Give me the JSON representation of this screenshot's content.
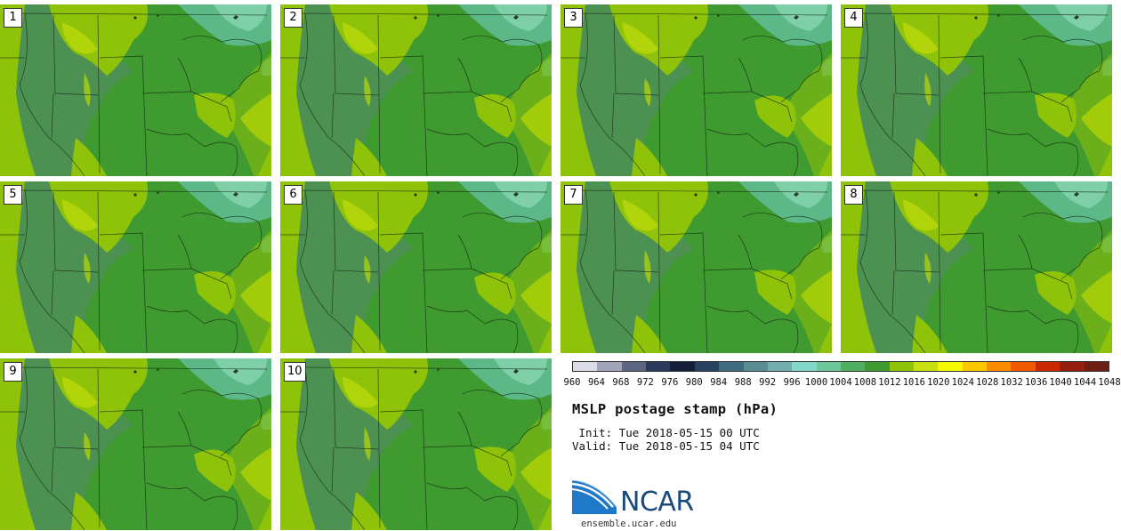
{
  "stamps": [
    {
      "label": "1"
    },
    {
      "label": "2"
    },
    {
      "label": "3"
    },
    {
      "label": "4"
    },
    {
      "label": "5"
    },
    {
      "label": "6"
    },
    {
      "label": "7"
    },
    {
      "label": "8"
    },
    {
      "label": "9"
    },
    {
      "label": "10"
    }
  ],
  "colorbar": {
    "colors": [
      "#dcdde6",
      "#a0a4b8",
      "#5c6680",
      "#2b3a5c",
      "#14203a",
      "#27405e",
      "#3f6a80",
      "#5a8c94",
      "#72aeae",
      "#82d8c8",
      "#6cc89a",
      "#4fae60",
      "#3f9a2f",
      "#8fc30a",
      "#c8e010",
      "#f4f800",
      "#fbc800",
      "#fa8c00",
      "#f05a00",
      "#c82800",
      "#962010",
      "#6e1e12"
    ],
    "ticks": [
      "960",
      "964",
      "968",
      "972",
      "976",
      "980",
      "984",
      "988",
      "992",
      "996",
      "1000",
      "1004",
      "1008",
      "1012",
      "1016",
      "1020",
      "1024",
      "1028",
      "1032",
      "1036",
      "1040",
      "1044",
      "1048"
    ]
  },
  "title": "MSLP postage stamp (hPa)",
  "init_text": " Init: Tue 2018-05-15 00 UTC",
  "valid_text": "Valid: Tue 2018-05-15 04 UTC",
  "logo": {
    "text": "NCAR",
    "url_text": "ensemble.ucar.edu"
  },
  "colors": {
    "base": "#3f9a2f",
    "light_green": "#8fc30a",
    "yellow_green": "#b9d80a",
    "gray_green": "#4f8f58",
    "teal_green": "#5cb887",
    "pale_teal": "#7fd0a8"
  }
}
